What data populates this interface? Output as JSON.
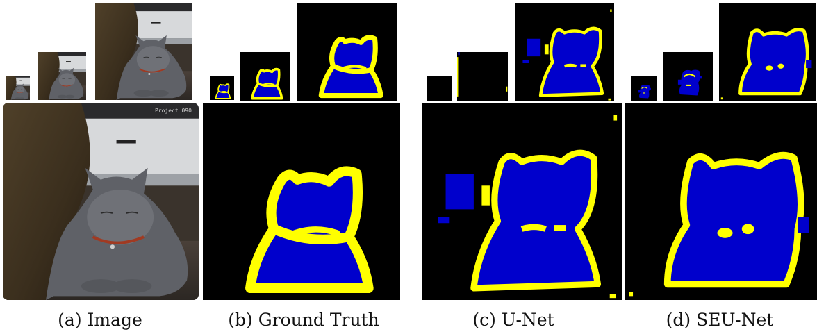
{
  "figure": {
    "captions": [
      {
        "label": "(a) Image"
      },
      {
        "label": "(b) Ground Truth"
      },
      {
        "label": "(c) U-Net"
      },
      {
        "label": "(d) SEU-Net"
      }
    ],
    "photo_overlay_text": "Project 090"
  },
  "colors": {
    "background": "#000000",
    "foreground_class": "#0000cc",
    "boundary_class": "#ffff00"
  }
}
